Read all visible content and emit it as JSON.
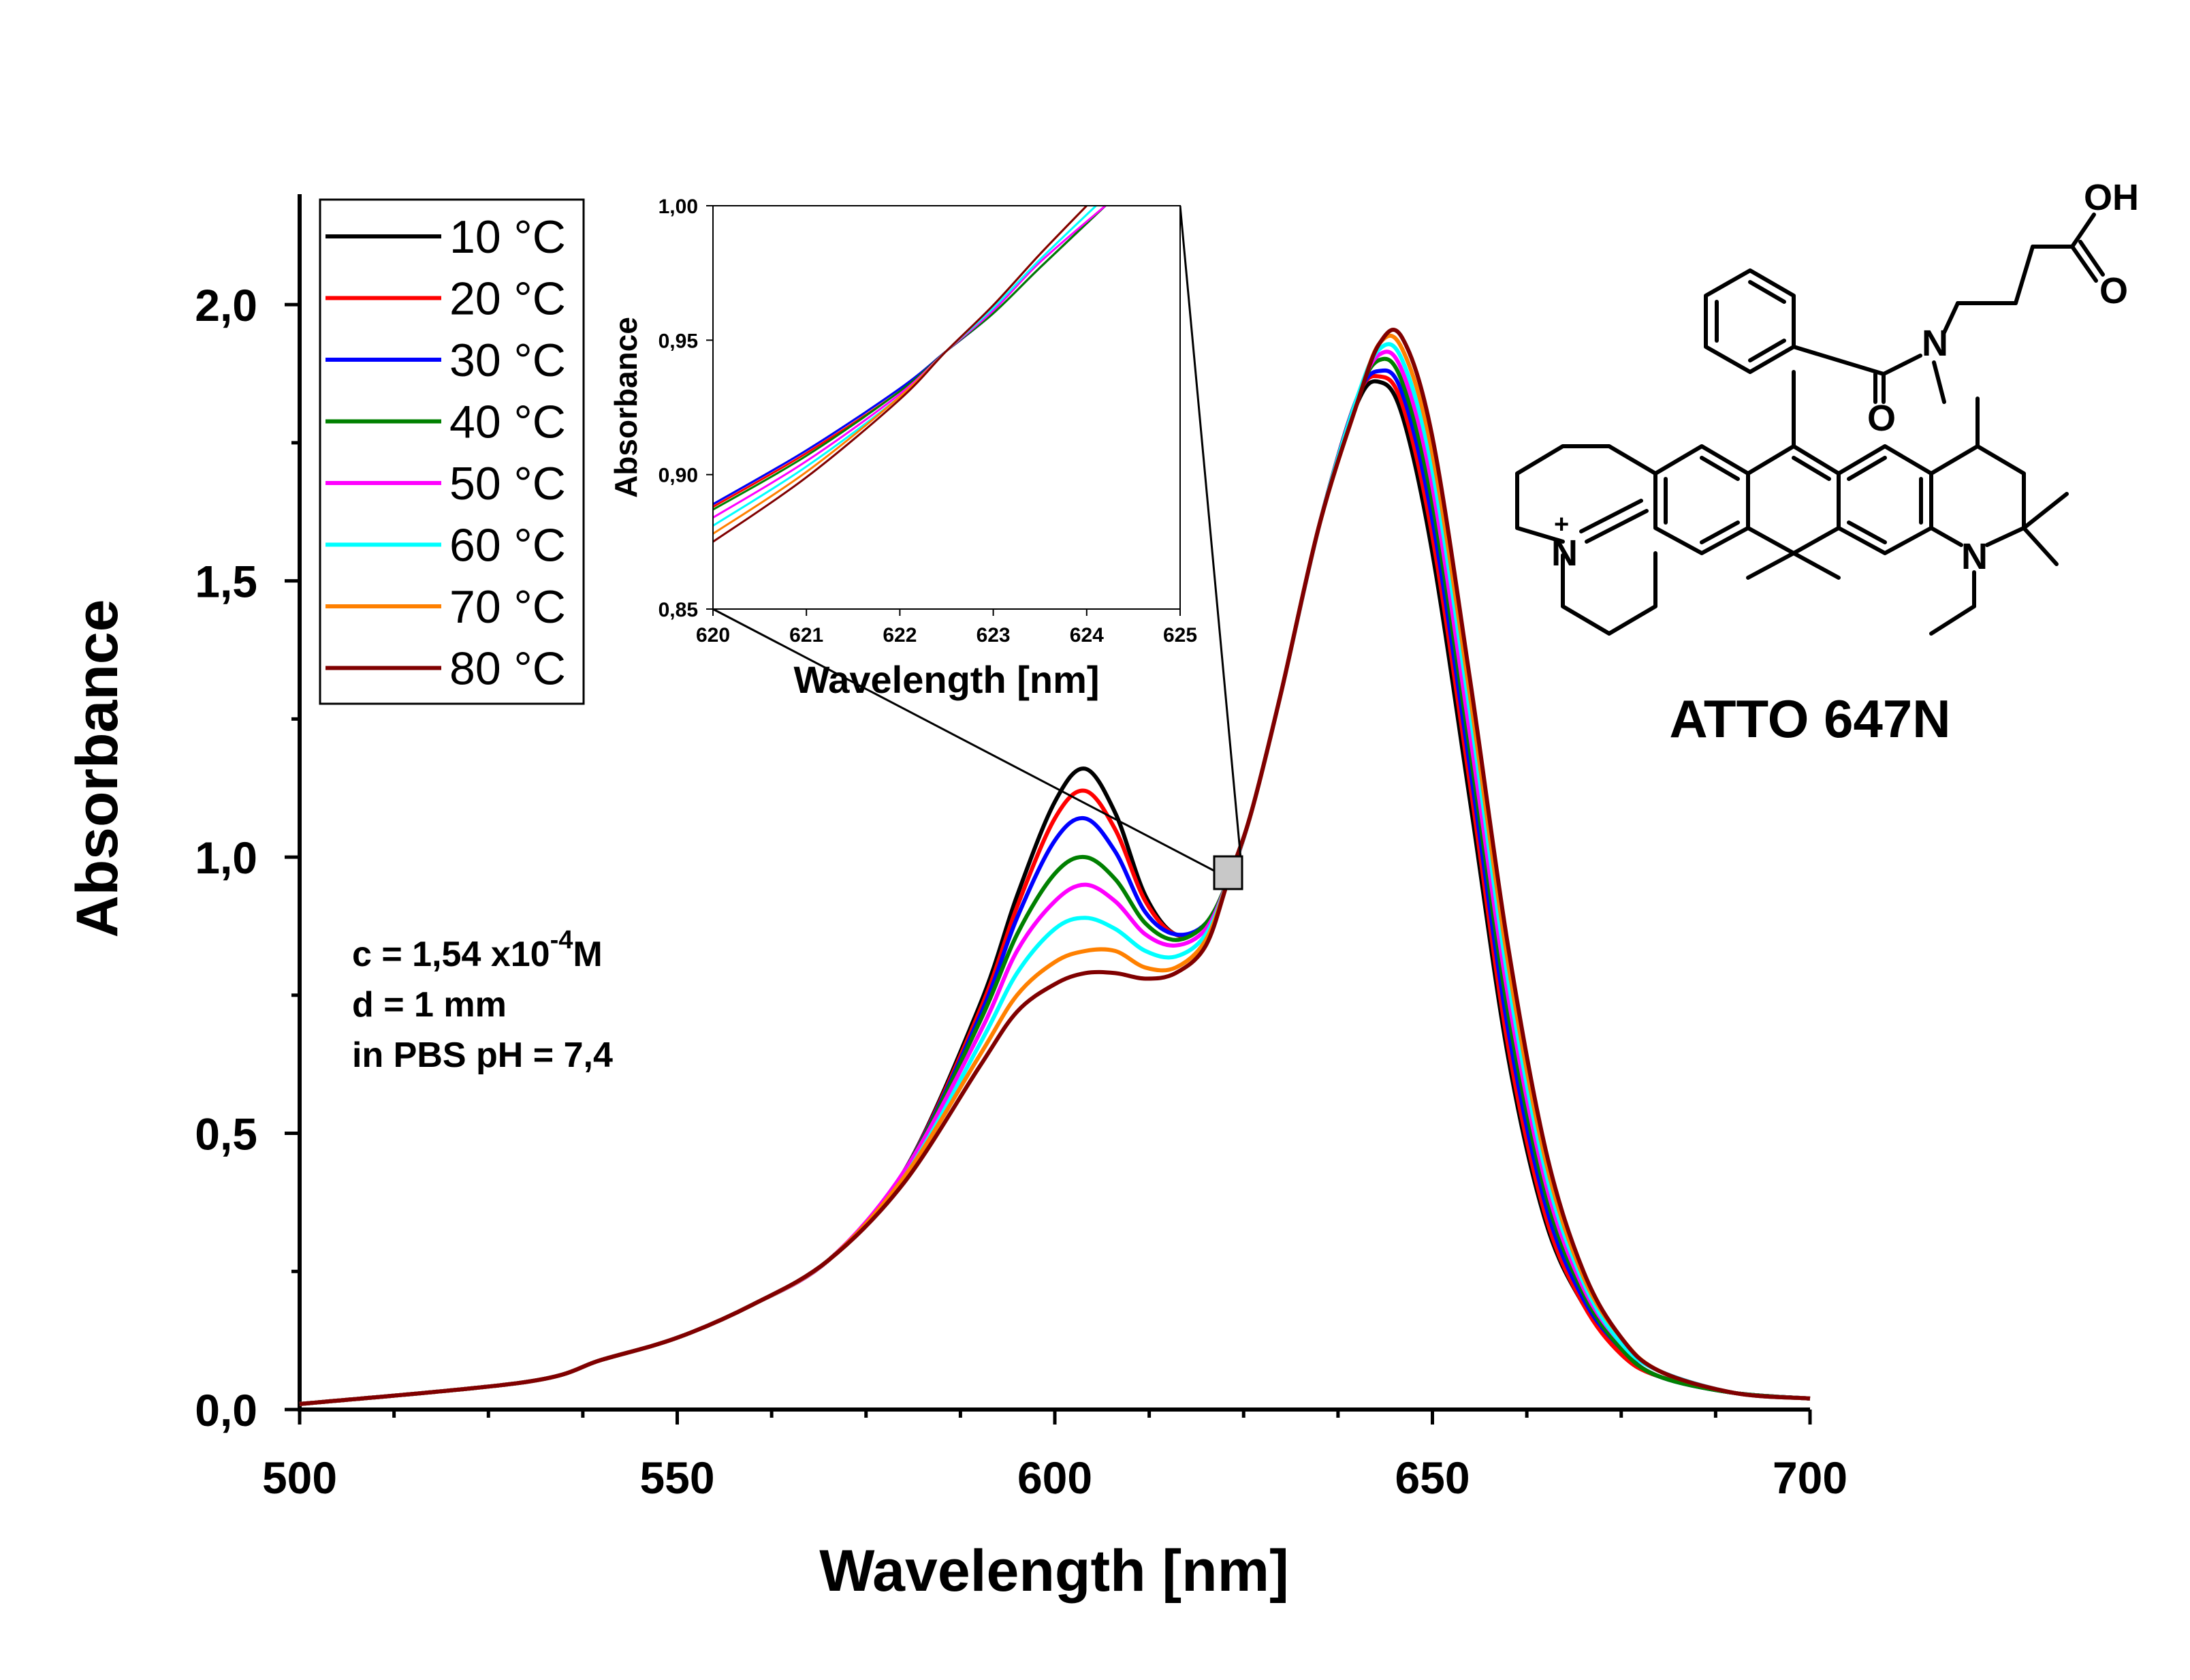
{
  "chart_data": [
    {
      "type": "line",
      "xlabel": "Wavelength [nm]",
      "ylabel": "Absorbance",
      "xlim": [
        500,
        700
      ],
      "ylim": [
        0,
        2.2
      ],
      "x_ticks": [
        500,
        550,
        600,
        650,
        700
      ],
      "x_tick_labels": [
        "500",
        "550",
        "600",
        "650",
        "700"
      ],
      "y_ticks": [
        0,
        0.5,
        1.0,
        1.5,
        2.0
      ],
      "y_tick_labels": [
        "0,0",
        "0,5",
        "1,0",
        "1,5",
        "2,0"
      ],
      "legend_position": "top-left",
      "annotations": [
        "c = 1,54 x10",
        "-4",
        "M",
        "d = 1 mm",
        "in PBS pH = 7,4"
      ],
      "structure_label": "ATTO 647N",
      "structure_atoms": [
        "OH",
        "O",
        "N",
        "O",
        "N",
        "N",
        "+"
      ],
      "series": [
        {
          "name": "10 °C",
          "color": "#000000",
          "x": [
            500,
            530,
            540,
            550,
            560,
            570,
            580,
            590,
            595,
            600,
            604,
            608,
            612,
            616,
            620,
            623,
            626,
            630,
            635,
            640,
            643,
            646,
            650,
            655,
            660,
            665,
            670,
            675,
            680,
            690,
            700
          ],
          "y": [
            0.01,
            0.05,
            0.09,
            0.13,
            0.19,
            0.27,
            0.43,
            0.73,
            0.93,
            1.1,
            1.16,
            1.08,
            0.93,
            0.86,
            0.88,
            0.96,
            1.08,
            1.3,
            1.6,
            1.82,
            1.86,
            1.8,
            1.55,
            1.1,
            0.64,
            0.34,
            0.19,
            0.1,
            0.06,
            0.03,
            0.02
          ]
        },
        {
          "name": "20 °C",
          "color": "#ff0000",
          "x": [
            500,
            530,
            540,
            550,
            560,
            570,
            580,
            590,
            595,
            600,
            604,
            608,
            612,
            616,
            620,
            623,
            626,
            630,
            635,
            640,
            643,
            646,
            650,
            655,
            660,
            665,
            670,
            675,
            680,
            690,
            700
          ],
          "y": [
            0.01,
            0.05,
            0.09,
            0.13,
            0.19,
            0.27,
            0.43,
            0.72,
            0.91,
            1.07,
            1.12,
            1.05,
            0.92,
            0.86,
            0.88,
            0.96,
            1.08,
            1.3,
            1.6,
            1.83,
            1.87,
            1.82,
            1.58,
            1.13,
            0.66,
            0.35,
            0.19,
            0.1,
            0.06,
            0.03,
            0.02
          ]
        },
        {
          "name": "30 °C",
          "color": "#0000ff",
          "x": [
            500,
            530,
            540,
            550,
            560,
            570,
            580,
            590,
            595,
            600,
            604,
            608,
            612,
            616,
            620,
            623,
            626,
            630,
            635,
            640,
            643,
            646,
            650,
            655,
            660,
            665,
            670,
            675,
            680,
            690,
            700
          ],
          "y": [
            0.01,
            0.05,
            0.09,
            0.13,
            0.19,
            0.27,
            0.43,
            0.71,
            0.89,
            1.03,
            1.07,
            1.01,
            0.9,
            0.86,
            0.88,
            0.96,
            1.08,
            1.3,
            1.6,
            1.83,
            1.88,
            1.84,
            1.61,
            1.16,
            0.69,
            0.37,
            0.2,
            0.11,
            0.06,
            0.03,
            0.02
          ]
        },
        {
          "name": "40 °C",
          "color": "#008000",
          "x": [
            500,
            530,
            540,
            550,
            560,
            570,
            580,
            590,
            595,
            600,
            604,
            608,
            612,
            616,
            620,
            623,
            626,
            630,
            635,
            640,
            643,
            646,
            650,
            655,
            660,
            665,
            670,
            675,
            680,
            690,
            700
          ],
          "y": [
            0.01,
            0.05,
            0.09,
            0.13,
            0.19,
            0.27,
            0.43,
            0.7,
            0.86,
            0.97,
            1.0,
            0.96,
            0.88,
            0.85,
            0.88,
            0.96,
            1.08,
            1.3,
            1.6,
            1.83,
            1.9,
            1.86,
            1.64,
            1.19,
            0.72,
            0.39,
            0.21,
            0.11,
            0.06,
            0.03,
            0.02
          ]
        },
        {
          "name": "50 °C",
          "color": "#ff00ff",
          "x": [
            500,
            530,
            540,
            550,
            560,
            570,
            580,
            590,
            595,
            600,
            604,
            608,
            612,
            616,
            620,
            623,
            626,
            630,
            635,
            640,
            643,
            646,
            650,
            655,
            660,
            665,
            670,
            675,
            680,
            690,
            700
          ],
          "y": [
            0.01,
            0.05,
            0.09,
            0.13,
            0.19,
            0.27,
            0.43,
            0.68,
            0.83,
            0.92,
            0.95,
            0.92,
            0.86,
            0.84,
            0.87,
            0.96,
            1.08,
            1.3,
            1.6,
            1.83,
            1.91,
            1.88,
            1.67,
            1.22,
            0.75,
            0.41,
            0.22,
            0.12,
            0.07,
            0.03,
            0.02
          ]
        },
        {
          "name": "60 °C",
          "color": "#00ffff",
          "x": [
            500,
            530,
            540,
            550,
            560,
            570,
            580,
            590,
            595,
            600,
            604,
            608,
            612,
            616,
            620,
            623,
            626,
            630,
            635,
            640,
            643,
            646,
            650,
            655,
            660,
            665,
            670,
            675,
            680,
            690,
            700
          ],
          "y": [
            0.01,
            0.05,
            0.09,
            0.13,
            0.19,
            0.27,
            0.42,
            0.66,
            0.79,
            0.87,
            0.89,
            0.87,
            0.83,
            0.82,
            0.86,
            0.96,
            1.08,
            1.3,
            1.6,
            1.83,
            1.92,
            1.9,
            1.7,
            1.26,
            0.78,
            0.43,
            0.23,
            0.12,
            0.07,
            0.03,
            0.02
          ]
        },
        {
          "name": "70 °C",
          "color": "#ff8000",
          "x": [
            500,
            530,
            540,
            550,
            560,
            570,
            580,
            590,
            595,
            600,
            604,
            608,
            612,
            616,
            620,
            623,
            626,
            630,
            635,
            640,
            643,
            646,
            650,
            655,
            660,
            665,
            670,
            675,
            680,
            690,
            700
          ],
          "y": [
            0.01,
            0.05,
            0.09,
            0.13,
            0.19,
            0.27,
            0.42,
            0.64,
            0.75,
            0.81,
            0.83,
            0.83,
            0.8,
            0.8,
            0.85,
            0.96,
            1.08,
            1.3,
            1.6,
            1.82,
            1.93,
            1.92,
            1.73,
            1.29,
            0.81,
            0.45,
            0.24,
            0.13,
            0.07,
            0.03,
            0.02
          ]
        },
        {
          "name": "80 °C",
          "color": "#800000",
          "x": [
            500,
            530,
            540,
            550,
            560,
            570,
            580,
            590,
            595,
            600,
            604,
            608,
            612,
            616,
            620,
            623,
            626,
            630,
            635,
            640,
            643,
            646,
            650,
            655,
            660,
            665,
            670,
            675,
            680,
            690,
            700
          ],
          "y": [
            0.01,
            0.05,
            0.09,
            0.13,
            0.19,
            0.27,
            0.41,
            0.62,
            0.72,
            0.77,
            0.79,
            0.79,
            0.78,
            0.79,
            0.84,
            0.96,
            1.08,
            1.3,
            1.6,
            1.82,
            1.93,
            1.94,
            1.76,
            1.32,
            0.84,
            0.47,
            0.25,
            0.13,
            0.07,
            0.03,
            0.02
          ]
        }
      ]
    },
    {
      "type": "line",
      "xlabel": "Wavelength [nm]",
      "ylabel": "Absorbance",
      "xlim": [
        620,
        625
      ],
      "ylim": [
        0.85,
        1.0
      ],
      "x_ticks": [
        620,
        621,
        622,
        623,
        624,
        625
      ],
      "x_tick_labels": [
        "620",
        "621",
        "622",
        "623",
        "624",
        "625"
      ],
      "y_ticks": [
        0.85,
        0.9,
        0.95,
        1.0
      ],
      "y_tick_labels": [
        "0,85",
        "0,90",
        "0,95",
        "1,00"
      ],
      "series": [
        {
          "color": "#000000",
          "x": [
            620,
            621,
            622,
            622.5,
            623,
            623.5,
            624.2
          ],
          "y": [
            0.889,
            0.909,
            0.932,
            0.946,
            0.96,
            0.977,
            1.0
          ]
        },
        {
          "color": "#ff0000",
          "x": [
            620,
            621,
            622,
            622.5,
            623,
            623.5,
            624.2
          ],
          "y": [
            0.888,
            0.908,
            0.931,
            0.946,
            0.96,
            0.977,
            1.0
          ]
        },
        {
          "color": "#0000ff",
          "x": [
            620,
            621,
            622,
            622.5,
            623,
            623.5,
            624.2
          ],
          "y": [
            0.889,
            0.909,
            0.932,
            0.946,
            0.96,
            0.977,
            1.0
          ]
        },
        {
          "color": "#008000",
          "x": [
            620,
            621,
            622,
            622.5,
            623,
            623.5,
            624.2
          ],
          "y": [
            0.887,
            0.907,
            0.931,
            0.946,
            0.96,
            0.977,
            1.0
          ]
        },
        {
          "color": "#ff00ff",
          "x": [
            620,
            621,
            622,
            622.5,
            623,
            623.5,
            624.2
          ],
          "y": [
            0.884,
            0.905,
            0.93,
            0.946,
            0.961,
            0.979,
            1.0
          ]
        },
        {
          "color": "#00ffff",
          "x": [
            620,
            621,
            622,
            622.5,
            623,
            623.5,
            624.1
          ],
          "y": [
            0.881,
            0.903,
            0.929,
            0.946,
            0.962,
            0.98,
            1.0
          ]
        },
        {
          "color": "#ff8000",
          "x": [
            620,
            621,
            622,
            622.5,
            623,
            623.5,
            624.0
          ],
          "y": [
            0.878,
            0.901,
            0.929,
            0.946,
            0.963,
            0.982,
            1.0
          ]
        },
        {
          "color": "#800000",
          "x": [
            620,
            621,
            622,
            622.5,
            623,
            623.5,
            624.0
          ],
          "y": [
            0.875,
            0.899,
            0.928,
            0.946,
            0.963,
            0.982,
            1.0
          ]
        }
      ]
    }
  ]
}
